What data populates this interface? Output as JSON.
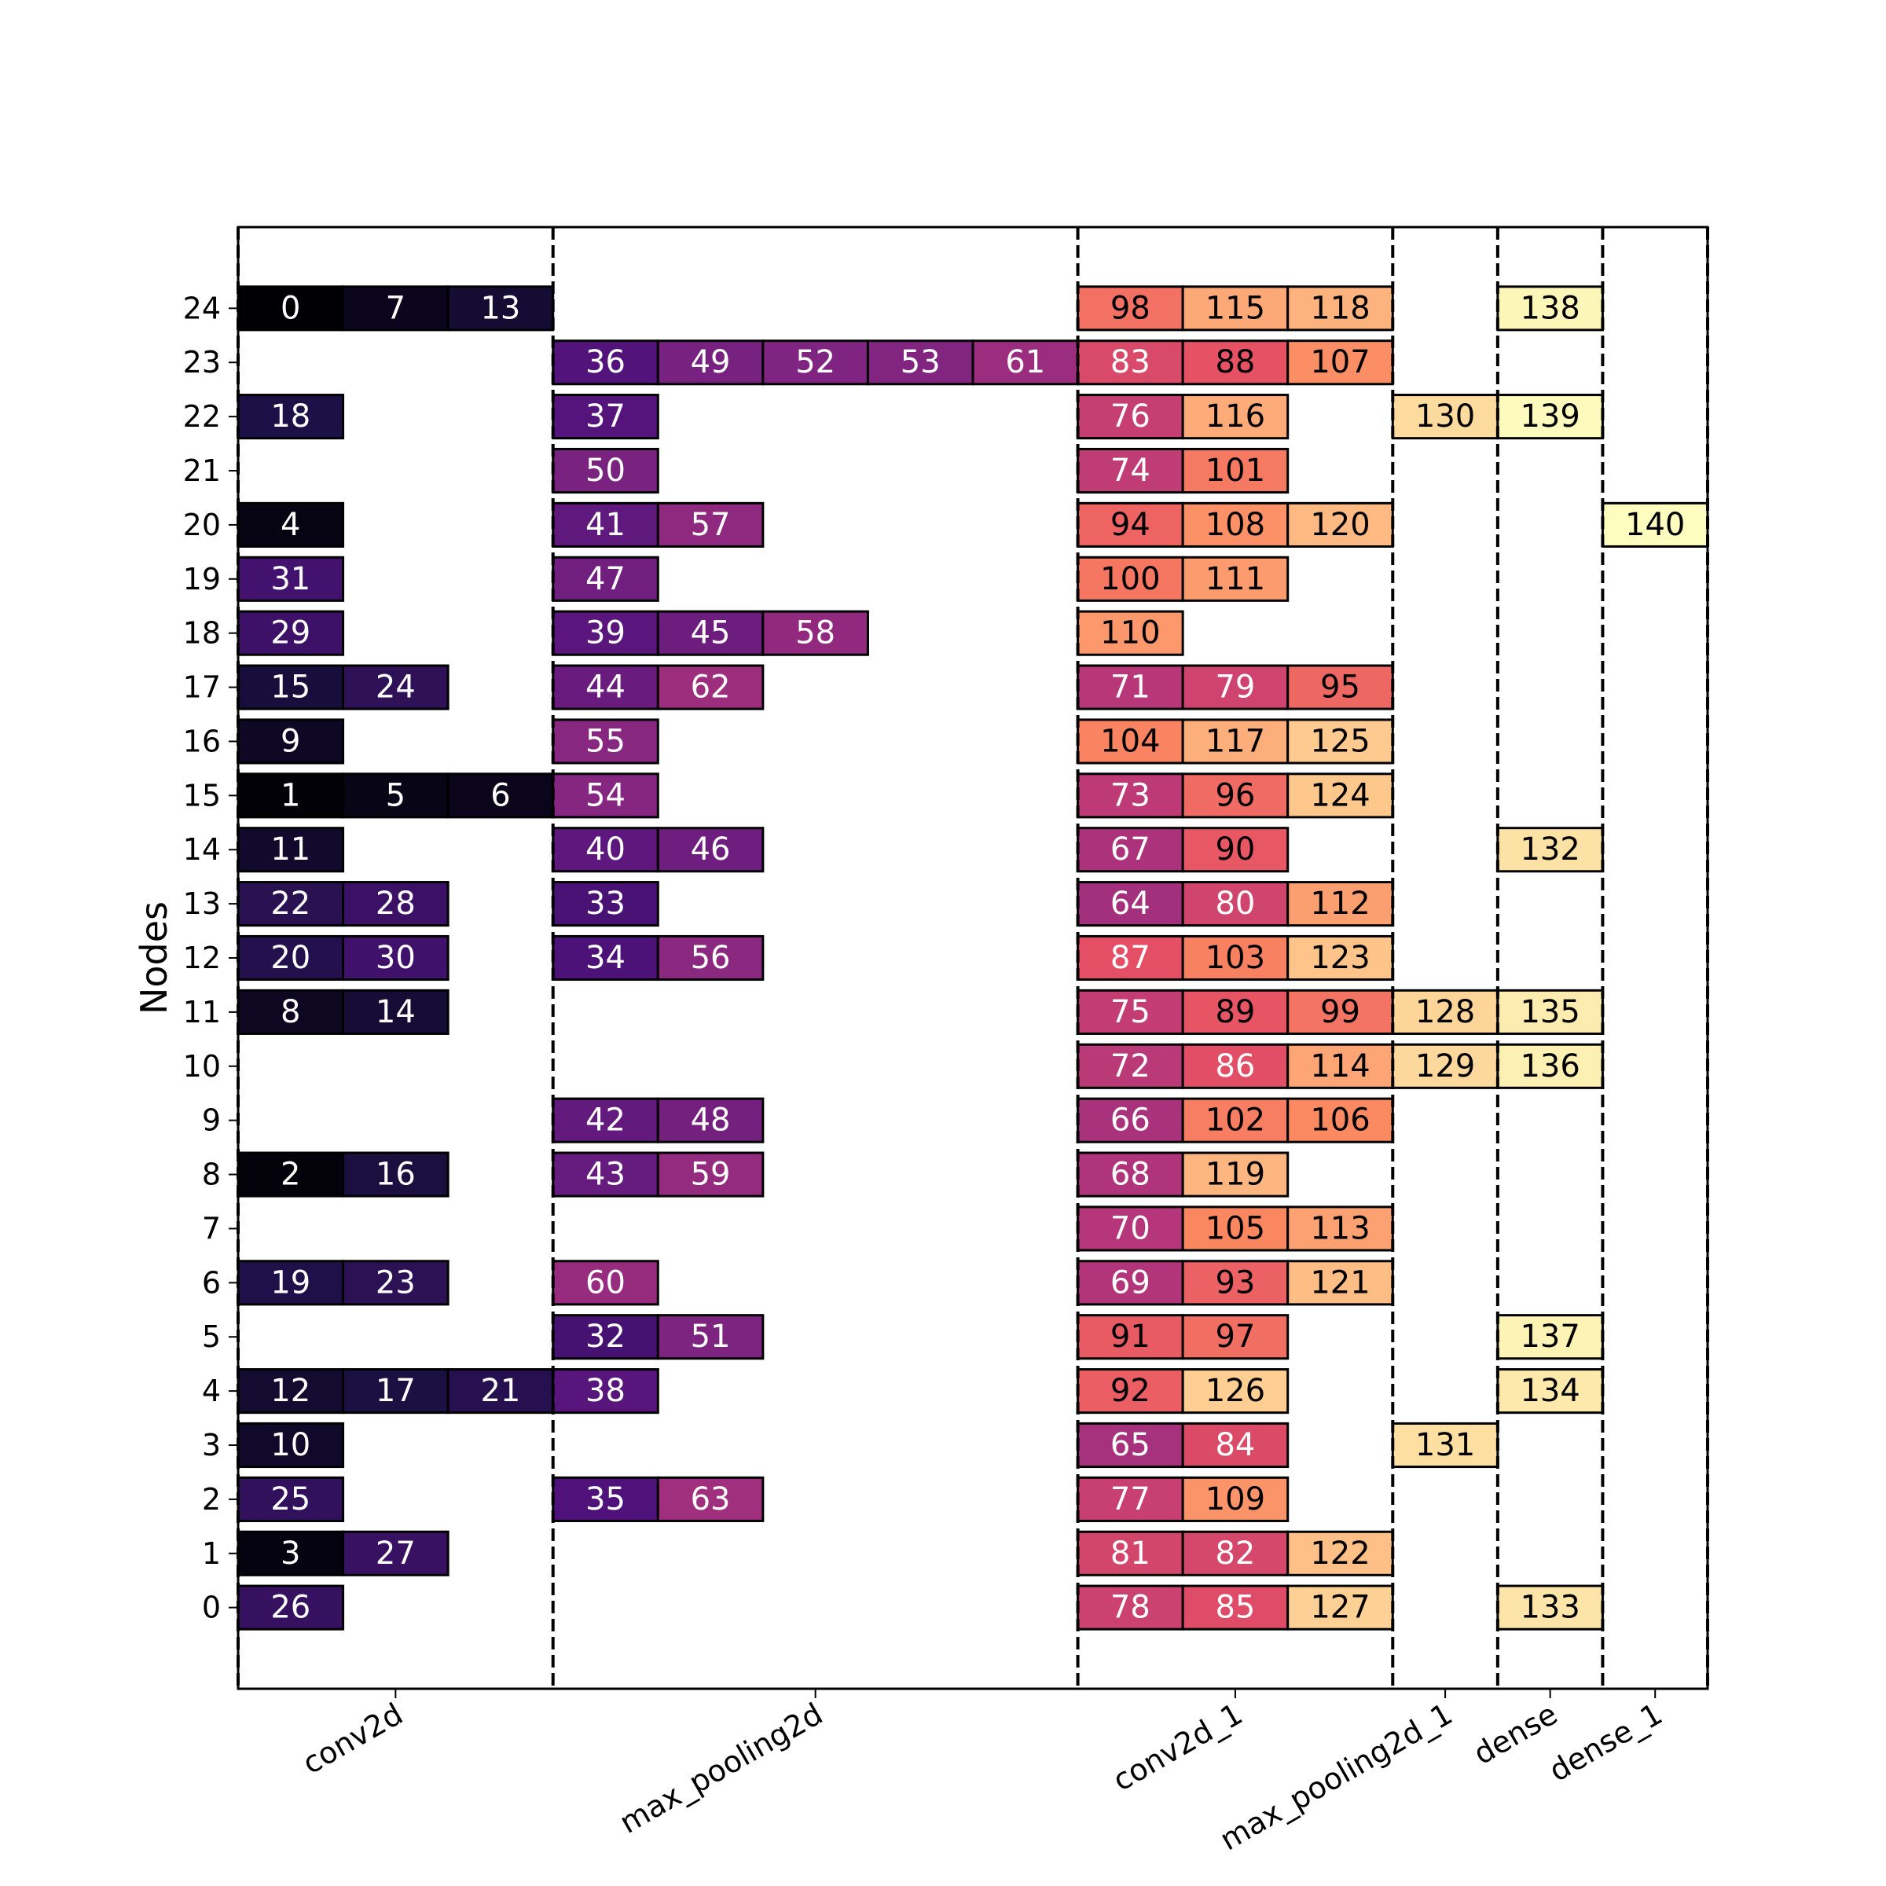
{
  "chart_data": {
    "type": "heatmap",
    "ylabel": "Nodes",
    "colormap": "magma",
    "value_range": [
      0,
      140
    ],
    "columns": [
      {
        "label": "conv2d",
        "span": [
          0,
          3
        ]
      },
      {
        "label": "max_pooling2d",
        "span": [
          3,
          8
        ]
      },
      {
        "label": "conv2d_1",
        "span": [
          8,
          11
        ]
      },
      {
        "label": "max_pooling2d_1",
        "span": [
          11,
          12
        ]
      },
      {
        "label": "dense",
        "span": [
          12,
          13
        ]
      },
      {
        "label": "dense_1",
        "span": [
          13,
          14
        ]
      }
    ],
    "y_ticks": [
      "0",
      "1",
      "2",
      "3",
      "4",
      "5",
      "6",
      "7",
      "8",
      "9",
      "10",
      "11",
      "12",
      "13",
      "14",
      "15",
      "16",
      "17",
      "18",
      "19",
      "20",
      "21",
      "22",
      "23",
      "24"
    ],
    "xlim": [
      0,
      14
    ],
    "ylim": [
      -1.5,
      25.5
    ],
    "cells": [
      {
        "node": 24,
        "slot": 0,
        "value": 0
      },
      {
        "node": 24,
        "slot": 1,
        "value": 7
      },
      {
        "node": 24,
        "slot": 2,
        "value": 13
      },
      {
        "node": 22,
        "slot": 0,
        "value": 18
      },
      {
        "node": 20,
        "slot": 0,
        "value": 4
      },
      {
        "node": 19,
        "slot": 0,
        "value": 31
      },
      {
        "node": 18,
        "slot": 0,
        "value": 29
      },
      {
        "node": 17,
        "slot": 0,
        "value": 15
      },
      {
        "node": 17,
        "slot": 1,
        "value": 24
      },
      {
        "node": 16,
        "slot": 0,
        "value": 9
      },
      {
        "node": 15,
        "slot": 0,
        "value": 1
      },
      {
        "node": 15,
        "slot": 1,
        "value": 5
      },
      {
        "node": 15,
        "slot": 2,
        "value": 6
      },
      {
        "node": 14,
        "slot": 0,
        "value": 11
      },
      {
        "node": 13,
        "slot": 0,
        "value": 22
      },
      {
        "node": 13,
        "slot": 1,
        "value": 28
      },
      {
        "node": 12,
        "slot": 0,
        "value": 20
      },
      {
        "node": 12,
        "slot": 1,
        "value": 30
      },
      {
        "node": 11,
        "slot": 0,
        "value": 8
      },
      {
        "node": 11,
        "slot": 1,
        "value": 14
      },
      {
        "node": 8,
        "slot": 0,
        "value": 2
      },
      {
        "node": 8,
        "slot": 1,
        "value": 16
      },
      {
        "node": 6,
        "slot": 0,
        "value": 19
      },
      {
        "node": 6,
        "slot": 1,
        "value": 23
      },
      {
        "node": 4,
        "slot": 0,
        "value": 12
      },
      {
        "node": 4,
        "slot": 1,
        "value": 17
      },
      {
        "node": 4,
        "slot": 2,
        "value": 21
      },
      {
        "node": 3,
        "slot": 0,
        "value": 10
      },
      {
        "node": 2,
        "slot": 0,
        "value": 25
      },
      {
        "node": 1,
        "slot": 0,
        "value": 3
      },
      {
        "node": 1,
        "slot": 1,
        "value": 27
      },
      {
        "node": 0,
        "slot": 0,
        "value": 26
      },
      {
        "node": 23,
        "slot": 3,
        "value": 36
      },
      {
        "node": 23,
        "slot": 4,
        "value": 49
      },
      {
        "node": 23,
        "slot": 5,
        "value": 52
      },
      {
        "node": 23,
        "slot": 6,
        "value": 53
      },
      {
        "node": 23,
        "slot": 7,
        "value": 61
      },
      {
        "node": 22,
        "slot": 3,
        "value": 37
      },
      {
        "node": 21,
        "slot": 3,
        "value": 50
      },
      {
        "node": 20,
        "slot": 3,
        "value": 41
      },
      {
        "node": 20,
        "slot": 4,
        "value": 57
      },
      {
        "node": 19,
        "slot": 3,
        "value": 47
      },
      {
        "node": 18,
        "slot": 3,
        "value": 39
      },
      {
        "node": 18,
        "slot": 4,
        "value": 45
      },
      {
        "node": 18,
        "slot": 5,
        "value": 58
      },
      {
        "node": 17,
        "slot": 3,
        "value": 44
      },
      {
        "node": 17,
        "slot": 4,
        "value": 62
      },
      {
        "node": 16,
        "slot": 3,
        "value": 55
      },
      {
        "node": 15,
        "slot": 3,
        "value": 54
      },
      {
        "node": 14,
        "slot": 3,
        "value": 40
      },
      {
        "node": 14,
        "slot": 4,
        "value": 46
      },
      {
        "node": 13,
        "slot": 3,
        "value": 33
      },
      {
        "node": 12,
        "slot": 3,
        "value": 34
      },
      {
        "node": 12,
        "slot": 4,
        "value": 56
      },
      {
        "node": 9,
        "slot": 3,
        "value": 42
      },
      {
        "node": 9,
        "slot": 4,
        "value": 48
      },
      {
        "node": 8,
        "slot": 3,
        "value": 43
      },
      {
        "node": 8,
        "slot": 4,
        "value": 59
      },
      {
        "node": 6,
        "slot": 3,
        "value": 60
      },
      {
        "node": 5,
        "slot": 3,
        "value": 32
      },
      {
        "node": 5,
        "slot": 4,
        "value": 51
      },
      {
        "node": 4,
        "slot": 3,
        "value": 38
      },
      {
        "node": 2,
        "slot": 3,
        "value": 35
      },
      {
        "node": 2,
        "slot": 4,
        "value": 63
      },
      {
        "node": 24,
        "slot": 8,
        "value": 98
      },
      {
        "node": 24,
        "slot": 9,
        "value": 115
      },
      {
        "node": 24,
        "slot": 10,
        "value": 118
      },
      {
        "node": 23,
        "slot": 8,
        "value": 83
      },
      {
        "node": 23,
        "slot": 9,
        "value": 88
      },
      {
        "node": 23,
        "slot": 10,
        "value": 107
      },
      {
        "node": 22,
        "slot": 8,
        "value": 76
      },
      {
        "node": 22,
        "slot": 9,
        "value": 116
      },
      {
        "node": 21,
        "slot": 8,
        "value": 74
      },
      {
        "node": 21,
        "slot": 9,
        "value": 101
      },
      {
        "node": 20,
        "slot": 8,
        "value": 94
      },
      {
        "node": 20,
        "slot": 9,
        "value": 108
      },
      {
        "node": 20,
        "slot": 10,
        "value": 120
      },
      {
        "node": 19,
        "slot": 8,
        "value": 100
      },
      {
        "node": 19,
        "slot": 9,
        "value": 111
      },
      {
        "node": 18,
        "slot": 8,
        "value": 110
      },
      {
        "node": 17,
        "slot": 8,
        "value": 71
      },
      {
        "node": 17,
        "slot": 9,
        "value": 79
      },
      {
        "node": 17,
        "slot": 10,
        "value": 95
      },
      {
        "node": 16,
        "slot": 8,
        "value": 104
      },
      {
        "node": 16,
        "slot": 9,
        "value": 117
      },
      {
        "node": 16,
        "slot": 10,
        "value": 125
      },
      {
        "node": 15,
        "slot": 8,
        "value": 73
      },
      {
        "node": 15,
        "slot": 9,
        "value": 96
      },
      {
        "node": 15,
        "slot": 10,
        "value": 124
      },
      {
        "node": 14,
        "slot": 8,
        "value": 67
      },
      {
        "node": 14,
        "slot": 9,
        "value": 90
      },
      {
        "node": 13,
        "slot": 8,
        "value": 64
      },
      {
        "node": 13,
        "slot": 9,
        "value": 80
      },
      {
        "node": 13,
        "slot": 10,
        "value": 112
      },
      {
        "node": 12,
        "slot": 8,
        "value": 87
      },
      {
        "node": 12,
        "slot": 9,
        "value": 103
      },
      {
        "node": 12,
        "slot": 10,
        "value": 123
      },
      {
        "node": 11,
        "slot": 8,
        "value": 75
      },
      {
        "node": 11,
        "slot": 9,
        "value": 89
      },
      {
        "node": 11,
        "slot": 10,
        "value": 99
      },
      {
        "node": 10,
        "slot": 8,
        "value": 72
      },
      {
        "node": 10,
        "slot": 9,
        "value": 86
      },
      {
        "node": 10,
        "slot": 10,
        "value": 114
      },
      {
        "node": 9,
        "slot": 8,
        "value": 66
      },
      {
        "node": 9,
        "slot": 9,
        "value": 102
      },
      {
        "node": 9,
        "slot": 10,
        "value": 106
      },
      {
        "node": 8,
        "slot": 8,
        "value": 68
      },
      {
        "node": 8,
        "slot": 9,
        "value": 119
      },
      {
        "node": 7,
        "slot": 8,
        "value": 70
      },
      {
        "node": 7,
        "slot": 9,
        "value": 105
      },
      {
        "node": 7,
        "slot": 10,
        "value": 113
      },
      {
        "node": 6,
        "slot": 8,
        "value": 69
      },
      {
        "node": 6,
        "slot": 9,
        "value": 93
      },
      {
        "node": 6,
        "slot": 10,
        "value": 121
      },
      {
        "node": 5,
        "slot": 8,
        "value": 91
      },
      {
        "node": 5,
        "slot": 9,
        "value": 97
      },
      {
        "node": 4,
        "slot": 8,
        "value": 92
      },
      {
        "node": 4,
        "slot": 9,
        "value": 126
      },
      {
        "node": 3,
        "slot": 8,
        "value": 65
      },
      {
        "node": 3,
        "slot": 9,
        "value": 84
      },
      {
        "node": 2,
        "slot": 8,
        "value": 77
      },
      {
        "node": 2,
        "slot": 9,
        "value": 109
      },
      {
        "node": 1,
        "slot": 8,
        "value": 81
      },
      {
        "node": 1,
        "slot": 9,
        "value": 82
      },
      {
        "node": 1,
        "slot": 10,
        "value": 122
      },
      {
        "node": 0,
        "slot": 8,
        "value": 78
      },
      {
        "node": 0,
        "slot": 9,
        "value": 85
      },
      {
        "node": 0,
        "slot": 10,
        "value": 127
      },
      {
        "node": 22,
        "slot": 11,
        "value": 130
      },
      {
        "node": 11,
        "slot": 11,
        "value": 128
      },
      {
        "node": 10,
        "slot": 11,
        "value": 129
      },
      {
        "node": 3,
        "slot": 11,
        "value": 131
      },
      {
        "node": 24,
        "slot": 12,
        "value": 138
      },
      {
        "node": 22,
        "slot": 12,
        "value": 139
      },
      {
        "node": 14,
        "slot": 12,
        "value": 132
      },
      {
        "node": 11,
        "slot": 12,
        "value": 135
      },
      {
        "node": 10,
        "slot": 12,
        "value": 136
      },
      {
        "node": 5,
        "slot": 12,
        "value": 137
      },
      {
        "node": 4,
        "slot": 12,
        "value": 134
      },
      {
        "node": 0,
        "slot": 12,
        "value": 133
      },
      {
        "node": 20,
        "slot": 13,
        "value": 140
      }
    ]
  }
}
